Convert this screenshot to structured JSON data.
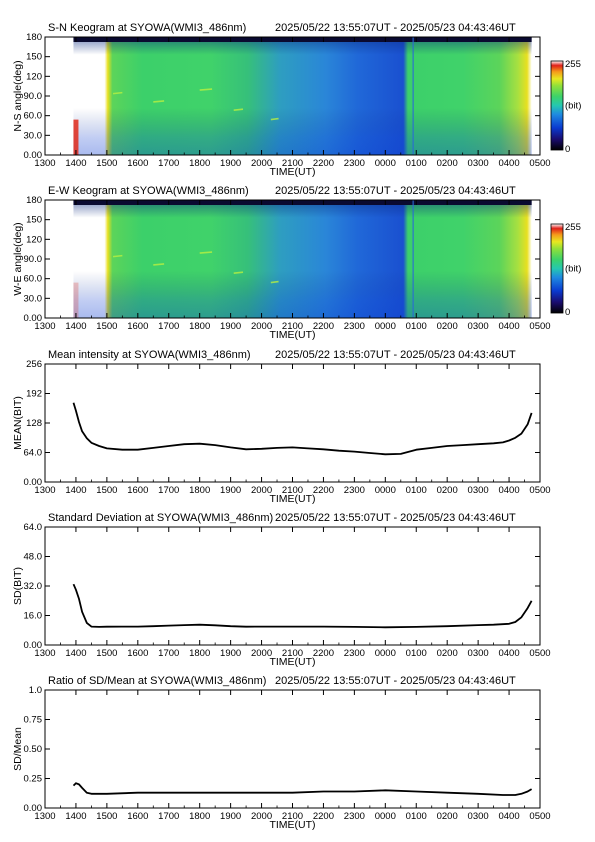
{
  "time_range": "2025/05/22 13:55:07UT - 2025/05/23 04:43:46UT",
  "colorbar": {
    "min_label": "255",
    "unit_label": "(bit)",
    "zero_label": "0"
  },
  "chart_data": [
    {
      "type": "heatmap",
      "title": "S-N Keogram at SYOWA(WMI3_486nm)",
      "xlabel": "TIME(UT)",
      "ylabel": "N-S angle(deg)",
      "x_ticks": [
        "1300",
        "1400",
        "1500",
        "1600",
        "1700",
        "1800",
        "1900",
        "2000",
        "2100",
        "2200",
        "2300",
        "0000",
        "0100",
        "0200",
        "0300",
        "0400",
        "0500"
      ],
      "y_ticks": [
        "0.00",
        "30.0",
        "60.0",
        "90.0",
        "120",
        "150",
        "180"
      ],
      "ylim": [
        0,
        180
      ],
      "colorscale": [
        "#1a0c6e",
        "#0a3ad0",
        "#1f8ae0",
        "#25c8b0",
        "#3cd26a",
        "#8fe03a",
        "#e8e820",
        "#f59a1a",
        "#e0201a",
        "#ffffff"
      ],
      "zlim": [
        0,
        255
      ]
    },
    {
      "type": "heatmap",
      "title": "E-W Keogram at SYOWA(WMI3_486nm)",
      "xlabel": "TIME(UT)",
      "ylabel": "W-E angle(deg)",
      "x_ticks": [
        "1300",
        "1400",
        "1500",
        "1600",
        "1700",
        "1800",
        "1900",
        "2000",
        "2100",
        "2200",
        "2300",
        "0000",
        "0100",
        "0200",
        "0300",
        "0400",
        "0500"
      ],
      "y_ticks": [
        "0.00",
        "30.0",
        "60.0",
        "90.0",
        "120",
        "150",
        "180"
      ],
      "ylim": [
        0,
        180
      ],
      "zlim": [
        0,
        255
      ]
    },
    {
      "type": "line",
      "title": "Mean intensity at SYOWA(WMI3_486nm)",
      "xlabel": "TIME(UT)",
      "ylabel": "MEAN(BIT)",
      "x_ticks": [
        "1300",
        "1400",
        "1500",
        "1600",
        "1700",
        "1800",
        "1900",
        "2000",
        "2100",
        "2200",
        "2300",
        "0000",
        "0100",
        "0200",
        "0300",
        "0400",
        "0500"
      ],
      "y_ticks": [
        "0.00",
        "64.0",
        "128",
        "192",
        "256"
      ],
      "ylim": [
        0,
        256
      ],
      "series": [
        {
          "x": [
            13.92,
            14.0,
            14.1,
            14.2,
            14.35,
            14.5,
            14.75,
            15.0,
            15.5,
            16.0,
            16.5,
            17.0,
            17.5,
            18.0,
            18.5,
            19.0,
            19.5,
            20.0,
            20.5,
            21.0,
            21.5,
            22.0,
            22.5,
            23.0,
            23.5,
            24.0,
            24.5,
            25.0,
            25.5,
            26.0,
            26.5,
            27.0,
            27.5,
            27.8,
            28.0,
            28.2,
            28.4,
            28.6,
            28.73
          ],
          "y": [
            172,
            155,
            130,
            110,
            95,
            85,
            78,
            73,
            70,
            70,
            74,
            78,
            82,
            83,
            80,
            75,
            71,
            72,
            74,
            75,
            73,
            71,
            68,
            66,
            63,
            60,
            61,
            70,
            74,
            78,
            80,
            82,
            84,
            86,
            90,
            96,
            105,
            125,
            150
          ]
        }
      ]
    },
    {
      "type": "line",
      "title": "Standard Deviation at SYOWA(WMI3_486nm)",
      "xlabel": "TIME(UT)",
      "ylabel": "SD(BIT)",
      "x_ticks": [
        "1300",
        "1400",
        "1500",
        "1600",
        "1700",
        "1800",
        "1900",
        "2000",
        "2100",
        "2200",
        "2300",
        "0000",
        "0100",
        "0200",
        "0300",
        "0400",
        "0500"
      ],
      "y_ticks": [
        "0.00",
        "16.0",
        "32.0",
        "48.0",
        "64.0"
      ],
      "ylim": [
        0,
        64
      ],
      "series": [
        {
          "x": [
            13.92,
            14.0,
            14.1,
            14.2,
            14.35,
            14.5,
            14.75,
            15.0,
            15.5,
            16.0,
            16.5,
            17.0,
            17.5,
            18.0,
            18.5,
            19.0,
            19.5,
            20.0,
            21.0,
            22.0,
            23.0,
            24.0,
            25.0,
            26.0,
            27.0,
            27.5,
            28.0,
            28.2,
            28.4,
            28.6,
            28.73
          ],
          "y": [
            33,
            30,
            25,
            18,
            12,
            10,
            9.8,
            9.9,
            10,
            10,
            10.2,
            10.5,
            10.8,
            11,
            10.7,
            10.2,
            9.9,
            10,
            10,
            10,
            9.8,
            9.6,
            9.8,
            10.2,
            10.8,
            11,
            11.5,
            12.5,
            15,
            20,
            24
          ]
        }
      ]
    },
    {
      "type": "line",
      "title": "Ratio of SD/Mean at SYOWA(WMI3_486nm)",
      "xlabel": "TIME(UT)",
      "ylabel": "SD/Mean",
      "x_ticks": [
        "1300",
        "1400",
        "1500",
        "1600",
        "1700",
        "1800",
        "1900",
        "2000",
        "2100",
        "2200",
        "2300",
        "0000",
        "0100",
        "0200",
        "0300",
        "0400",
        "0500"
      ],
      "y_ticks": [
        "0.00",
        "0.25",
        "0.50",
        "0.75",
        "1.0"
      ],
      "ylim": [
        0,
        1
      ],
      "series": [
        {
          "x": [
            13.92,
            14.0,
            14.1,
            14.2,
            14.35,
            14.5,
            15.0,
            16.0,
            17.0,
            18.0,
            19.0,
            20.0,
            21.0,
            22.0,
            23.0,
            24.0,
            25.0,
            26.0,
            27.0,
            27.8,
            28.2,
            28.4,
            28.6,
            28.73
          ],
          "y": [
            0.19,
            0.21,
            0.2,
            0.17,
            0.13,
            0.12,
            0.12,
            0.13,
            0.13,
            0.13,
            0.13,
            0.13,
            0.13,
            0.14,
            0.14,
            0.15,
            0.14,
            0.13,
            0.12,
            0.11,
            0.11,
            0.12,
            0.14,
            0.16
          ]
        }
      ]
    }
  ]
}
